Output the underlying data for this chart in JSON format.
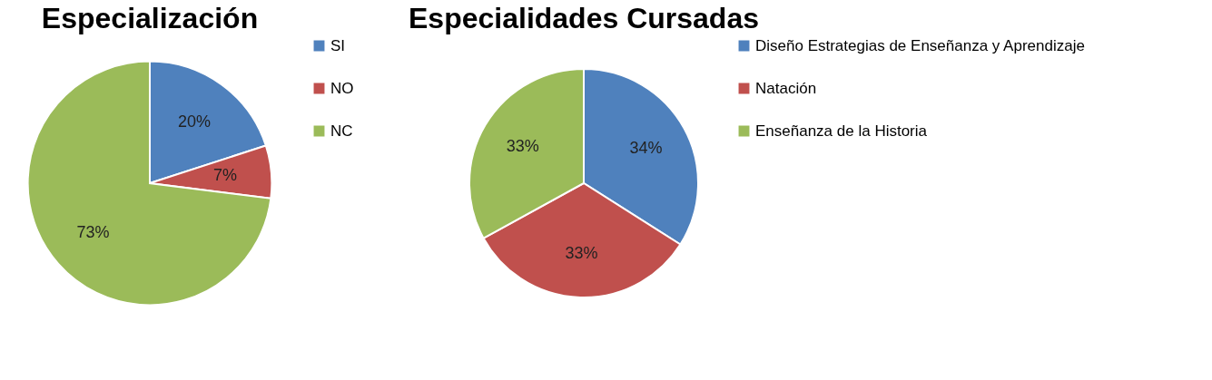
{
  "chart_data": [
    {
      "type": "pie",
      "title": "Especialización",
      "categories": [
        "SI",
        "NO",
        "NC"
      ],
      "values": [
        20,
        7,
        73
      ],
      "colors": [
        "#4f81bd",
        "#c0504d",
        "#9bbb59"
      ],
      "value_labels": [
        "20%",
        "7%",
        "73%"
      ],
      "legend": "right"
    },
    {
      "type": "pie",
      "title": "Especialidades Cursadas",
      "categories": [
        "Diseño Estrategias de Enseñanza y Aprendizaje",
        "Natación",
        "Enseñanza de la Historia"
      ],
      "values": [
        34,
        33,
        33
      ],
      "colors": [
        "#4f81bd",
        "#c0504d",
        "#9bbb59"
      ],
      "value_labels": [
        "34%",
        "33%",
        "33%"
      ],
      "legend": "right"
    }
  ]
}
